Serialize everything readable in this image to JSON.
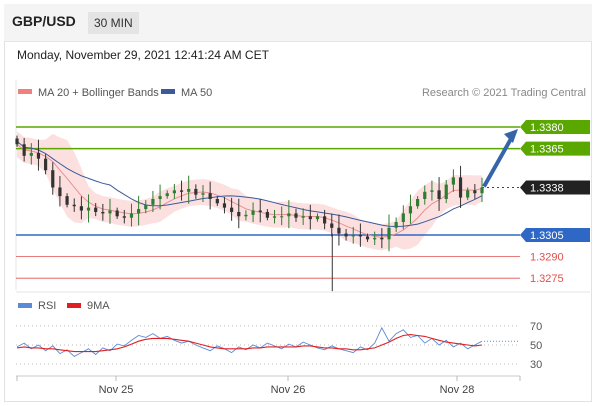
{
  "header": {
    "pair": "GBP/USD",
    "timeframe": "30 MIN"
  },
  "date_line": "Monday, November 29, 2021 12:41:24 AM CET",
  "legend": {
    "ma20": "MA 20 + Bollinger Bands",
    "ma50": "MA 50",
    "credit": "Research © 2021 Trading Central",
    "rsi": "RSI",
    "rsi_ma": "9MA"
  },
  "colors": {
    "green_level": "#5aa700",
    "blue_level": "#2f68c4",
    "red_level": "#e05050",
    "current": "#222222",
    "bollinger_fill": "#fbdada",
    "ma20_line": "#e89090",
    "ma50_line": "#3a5a9a",
    "candle_up": "#2e7d32",
    "candle_down": "#333333",
    "arrow": "#3564a8",
    "rsi_line": "#5b8ad6",
    "rsi_ma_line": "#e02020"
  },
  "chart_data": [
    {
      "type": "candlestick",
      "price_levels": [
        {
          "price": 1.338,
          "label": "1.3380",
          "kind": "resistance"
        },
        {
          "price": 1.3365,
          "label": "1.3365",
          "kind": "resistance"
        },
        {
          "price": 1.3338,
          "label": "1.3338",
          "kind": "current"
        },
        {
          "price": 1.3305,
          "label": "1.3305",
          "kind": "support"
        },
        {
          "price": 1.329,
          "label": "1.3290",
          "kind": "support"
        },
        {
          "price": 1.3275,
          "label": "1.3275",
          "kind": "support"
        }
      ],
      "x_tick_labels": [
        "Nov 25",
        "Nov 26",
        "Nov 28"
      ],
      "close_path": [
        1.3368,
        1.336,
        1.3362,
        1.3358,
        1.335,
        1.3338,
        1.3332,
        1.3326,
        1.3325,
        1.3322,
        1.3324,
        1.3321,
        1.332,
        1.3322,
        1.3318,
        1.3317,
        1.332,
        1.3323,
        1.3326,
        1.333,
        1.3332,
        1.3334,
        1.3336,
        1.3335,
        1.3337,
        1.3333,
        1.3334,
        1.333,
        1.3327,
        1.3324,
        1.3321,
        1.3318,
        1.3319,
        1.3322,
        1.3321,
        1.3317,
        1.3318,
        1.3318,
        1.332,
        1.3317,
        1.3318,
        1.3316,
        1.3318,
        1.3313,
        1.331,
        1.3306,
        1.3304,
        1.3305,
        1.3304,
        1.3302,
        1.3303,
        1.3302,
        1.331,
        1.3314,
        1.332,
        1.3325,
        1.333,
        1.3335,
        1.3336,
        1.333,
        1.334,
        1.3345,
        1.3331,
        1.3336,
        1.3334,
        1.3338
      ],
      "projection": {
        "from": 1.3338,
        "to": 1.338
      }
    },
    {
      "type": "line",
      "title": "RSI",
      "y_tick_labels": [
        "70",
        "50",
        "30"
      ],
      "ylim": [
        20,
        80
      ],
      "series": [
        {
          "name": "RSI",
          "values": [
            48,
            52,
            46,
            50,
            44,
            49,
            41,
            45,
            38,
            42,
            46,
            40,
            47,
            44,
            51,
            49,
            55,
            60,
            58,
            62,
            57,
            59,
            55,
            52,
            54,
            50,
            47,
            44,
            49,
            46,
            42,
            48,
            45,
            50,
            47,
            52,
            49,
            46,
            51,
            48,
            53,
            50,
            47,
            45,
            49,
            46,
            44,
            42,
            48,
            45,
            52,
            68,
            54,
            62,
            66,
            58,
            60,
            52,
            57,
            50,
            55,
            48,
            52,
            46,
            50,
            54
          ]
        },
        {
          "name": "9MA",
          "values": [
            47,
            48,
            47,
            47,
            46,
            46,
            45,
            44,
            43,
            43,
            43,
            43,
            44,
            45,
            46,
            48,
            51,
            54,
            56,
            57,
            57,
            57,
            56,
            55,
            54,
            52,
            50,
            48,
            47,
            46,
            46,
            46,
            46,
            47,
            47,
            48,
            48,
            48,
            48,
            48,
            49,
            49,
            48,
            47,
            47,
            46,
            46,
            45,
            45,
            46,
            47,
            50,
            53,
            57,
            60,
            61,
            60,
            59,
            57,
            55,
            53,
            52,
            51,
            50,
            49,
            50
          ]
        }
      ]
    }
  ]
}
